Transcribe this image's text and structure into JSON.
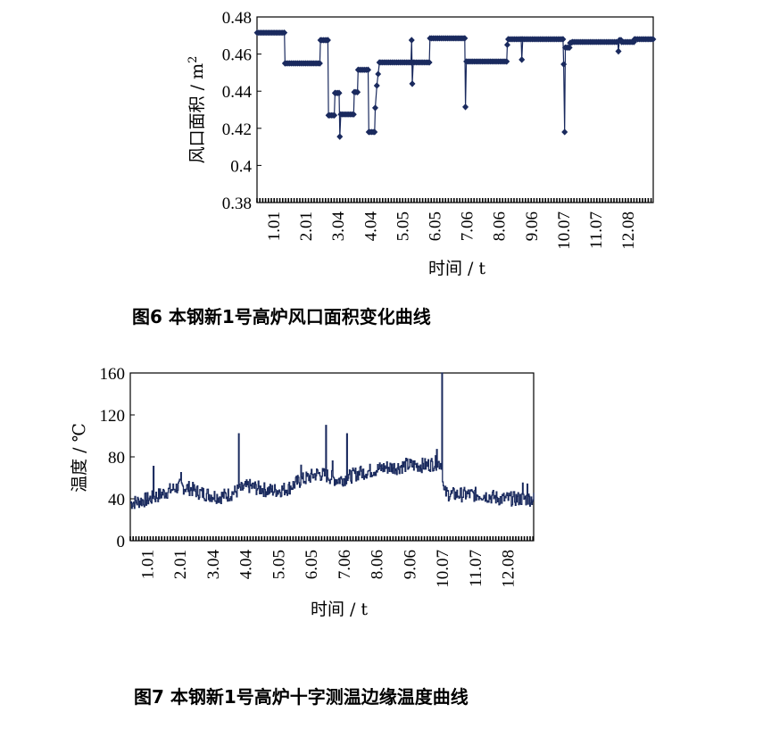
{
  "chart_data": [
    {
      "type": "line",
      "ylabel": "风口面积 / m",
      "ylabel_sup": "2",
      "xlabel": "时间 / t",
      "ylim": [
        0.38,
        0.48
      ],
      "yticks": [
        "0.38",
        "0.4",
        "0.42",
        "0.44",
        "0.46",
        "0.48"
      ],
      "xticks": [
        "1.01",
        "2.01",
        "3.04",
        "4.04",
        "5.05",
        "6.05",
        "7.06",
        "8.06",
        "9.06",
        "10.07",
        "11.07",
        "12.08"
      ],
      "xlim": [
        0,
        12.3
      ],
      "xtick_positions": [
        0.5,
        1.5,
        2.5,
        3.5,
        4.5,
        5.5,
        6.5,
        7.5,
        8.5,
        9.5,
        10.5,
        11.5
      ],
      "grid": false,
      "color": "#1a2a5e",
      "marker": "diamond",
      "series": [
        {
          "segments": [
            [
              0.0,
              0.4715
            ],
            [
              0.85,
              0.4715
            ],
            [
              0.87,
              0.455
            ],
            [
              1.95,
              0.455
            ],
            [
              1.97,
              0.4675
            ],
            [
              2.2,
              0.4675
            ],
            [
              2.22,
              0.427
            ],
            [
              2.4,
              0.427
            ],
            [
              2.42,
              0.439
            ],
            [
              2.55,
              0.439
            ],
            [
              2.57,
              0.4155
            ],
            [
              2.6,
              0.4275
            ],
            [
              3.0,
              0.4275
            ],
            [
              3.02,
              0.4395
            ],
            [
              3.12,
              0.4395
            ],
            [
              3.14,
              0.4515
            ],
            [
              3.45,
              0.4515
            ],
            [
              3.47,
              0.418
            ],
            [
              3.65,
              0.418
            ],
            [
              3.67,
              0.431
            ],
            [
              3.72,
              0.443
            ],
            [
              3.8,
              0.4555
            ],
            [
              4.78,
              0.4555
            ],
            [
              4.8,
              0.4675
            ],
            [
              4.82,
              0.444
            ],
            [
              4.85,
              0.4555
            ],
            [
              5.35,
              0.4555
            ],
            [
              5.37,
              0.4685
            ],
            [
              6.45,
              0.4685
            ],
            [
              6.47,
              0.4315
            ],
            [
              6.5,
              0.456
            ],
            [
              7.75,
              0.456
            ],
            [
              7.77,
              0.465
            ],
            [
              7.8,
              0.468
            ],
            [
              8.2,
              0.468
            ],
            [
              8.22,
              0.457
            ],
            [
              8.25,
              0.468
            ],
            [
              9.5,
              0.468
            ],
            [
              9.52,
              0.4545
            ],
            [
              9.55,
              0.418
            ],
            [
              9.57,
              0.4635
            ],
            [
              9.7,
              0.4635
            ],
            [
              9.72,
              0.466
            ],
            [
              9.8,
              0.4665
            ],
            [
              11.2,
              0.4665
            ],
            [
              11.22,
              0.4615
            ],
            [
              11.25,
              0.4675
            ],
            [
              11.3,
              0.4675
            ],
            [
              11.32,
              0.4665
            ],
            [
              11.7,
              0.4665
            ],
            [
              11.72,
              0.468
            ],
            [
              12.3,
              0.468
            ]
          ]
        }
      ]
    },
    {
      "type": "line",
      "ylabel": "温度 / ℃",
      "xlabel": "时间 / t",
      "ylim": [
        0,
        160
      ],
      "yticks": [
        "0",
        "40",
        "80",
        "120",
        "160"
      ],
      "xticks": [
        "1.01",
        "2.01",
        "3.04",
        "4.04",
        "5.05",
        "6.05",
        "7.06",
        "8.06",
        "9.06",
        "10.07",
        "11.07",
        "12.08"
      ],
      "xlim": [
        0,
        12.3
      ],
      "xtick_positions": [
        0.5,
        1.5,
        2.5,
        3.5,
        4.5,
        5.5,
        6.5,
        7.5,
        8.5,
        9.5,
        10.5,
        11.5
      ],
      "grid": false,
      "color": "#1a2a5e",
      "series": [
        {
          "base": [
            [
              0.0,
              36
            ],
            [
              0.3,
              38
            ],
            [
              0.6,
              40
            ],
            [
              0.9,
              44
            ],
            [
              1.2,
              48
            ],
            [
              1.5,
              52
            ],
            [
              1.8,
              50
            ],
            [
              2.1,
              46
            ],
            [
              2.4,
              44
            ],
            [
              2.7,
              42
            ],
            [
              3.0,
              44
            ],
            [
              3.3,
              48
            ],
            [
              3.6,
              52
            ],
            [
              3.9,
              50
            ],
            [
              4.2,
              48
            ],
            [
              4.5,
              48
            ],
            [
              4.8,
              50
            ],
            [
              5.1,
              56
            ],
            [
              5.4,
              60
            ],
            [
              5.7,
              64
            ],
            [
              6.0,
              62
            ],
            [
              6.3,
              58
            ],
            [
              6.6,
              60
            ],
            [
              6.9,
              64
            ],
            [
              7.2,
              66
            ],
            [
              7.5,
              68
            ],
            [
              7.8,
              70
            ],
            [
              8.1,
              70
            ],
            [
              8.4,
              72
            ],
            [
              8.7,
              72
            ],
            [
              9.0,
              72
            ],
            [
              9.3,
              74
            ],
            [
              9.5,
              74
            ],
            [
              9.55,
              46
            ],
            [
              9.8,
              44
            ],
            [
              10.1,
              44
            ],
            [
              10.4,
              44
            ],
            [
              10.7,
              44
            ],
            [
              11.0,
              42
            ],
            [
              11.3,
              40
            ],
            [
              11.6,
              40
            ],
            [
              11.9,
              40
            ],
            [
              12.2,
              40
            ],
            [
              12.3,
              40
            ]
          ],
          "amplitude": 7,
          "spikes": [
            [
              0.7,
              71
            ],
            [
              1.55,
              65
            ],
            [
              3.3,
              102
            ],
            [
              5.2,
              72
            ],
            [
              5.95,
              110
            ],
            [
              6.15,
              76
            ],
            [
              6.6,
              102
            ],
            [
              7.0,
              70
            ],
            [
              9.33,
              87
            ],
            [
              9.5,
              160
            ],
            [
              12.1,
              54
            ],
            [
              11.95,
              55
            ]
          ]
        }
      ]
    }
  ],
  "captions": {
    "fig6": "图6 本钢新1号高炉风口面积变化曲线",
    "fig7": "图7 本钢新1号高炉十字测温边缘温度曲线"
  }
}
